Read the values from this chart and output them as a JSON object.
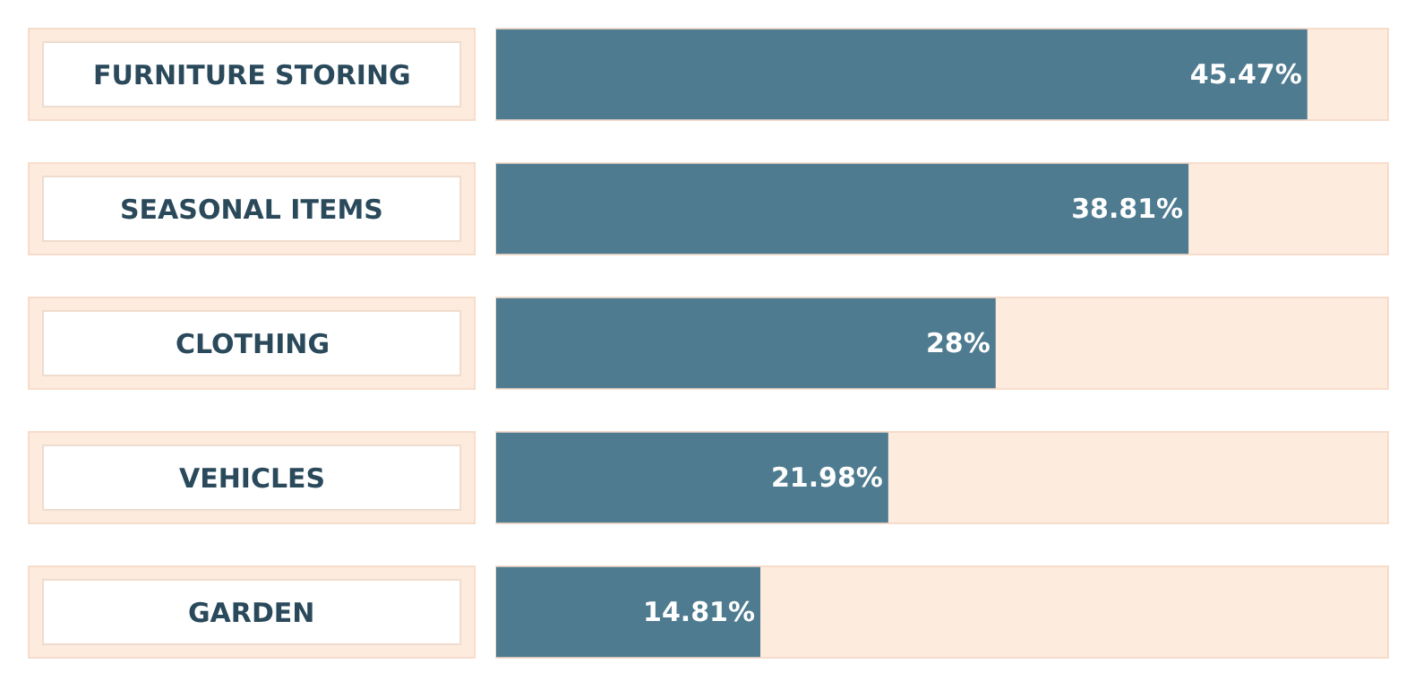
{
  "chart_data": {
    "type": "bar",
    "orientation": "horizontal",
    "categories": [
      "FURNITURE STORING",
      "SEASONAL ITEMS",
      "CLOTHING",
      "VEHICLES",
      "GARDEN"
    ],
    "values": [
      45.47,
      38.81,
      28,
      21.98,
      14.81
    ],
    "value_labels": [
      "45.47%",
      "38.81%",
      "28%",
      "21.98%",
      "14.81%"
    ],
    "color": "#4f7b90",
    "xlim": [
      0,
      50
    ]
  }
}
